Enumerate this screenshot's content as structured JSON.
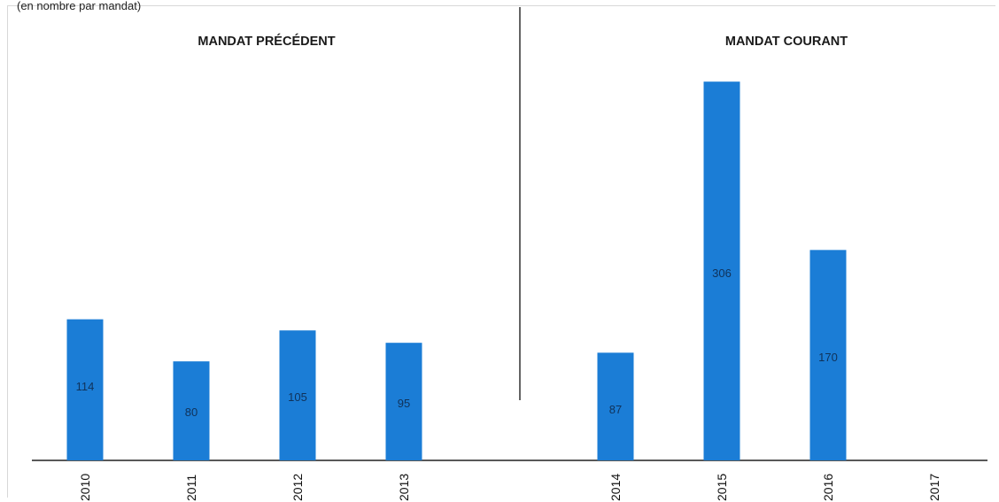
{
  "header": {
    "note": "(en nombre par mandat)"
  },
  "chart_data": {
    "type": "bar",
    "title": "",
    "xlabel": "",
    "ylabel": "",
    "ylim": [
      0,
      320
    ],
    "grid": false,
    "sections": [
      {
        "title": "MANDAT PRÉCÉDENT",
        "categories": [
          "2010",
          "2011",
          "2012",
          "2013"
        ]
      },
      {
        "title": "MANDAT COURANT",
        "categories": [
          "2014",
          "2015",
          "2016",
          "2017"
        ]
      }
    ],
    "categories": [
      "2010",
      "2011",
      "2012",
      "2013",
      "2014",
      "2015",
      "2016",
      "2017"
    ],
    "values": [
      114,
      80,
      105,
      95,
      87,
      306,
      170,
      null
    ],
    "data_labels": [
      "114",
      "80",
      "105",
      "95",
      "87",
      "306",
      "170",
      ""
    ],
    "colors": {
      "bar": "#1b7dd6",
      "axis": "#222222",
      "divider": "#222222"
    }
  }
}
